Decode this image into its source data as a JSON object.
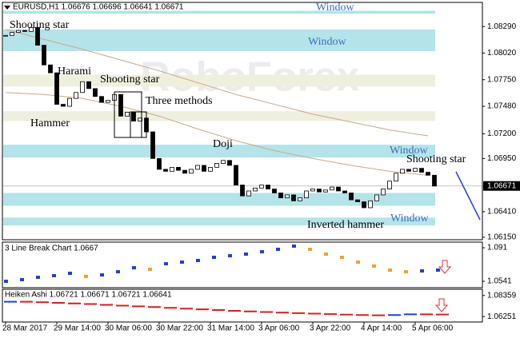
{
  "chart_data": [
    {
      "type": "candlestick",
      "title": "EURUSD,H1 1.06676 1.06696 1.06641 1.06671",
      "watermark": "RoboForex",
      "values": [
        1.082,
        1.0823,
        1.0825,
        1.0824,
        1.0828,
        1.081,
        1.079,
        1.0782,
        1.075,
        1.0748,
        1.0756,
        1.0762,
        1.0773,
        1.0766,
        1.0758,
        1.0752,
        1.0754,
        1.076,
        1.0738,
        1.0742,
        1.0733,
        1.0736,
        1.0722,
        1.0695,
        1.0684,
        1.0682,
        1.0686,
        1.0683,
        1.068,
        1.0684,
        1.0688,
        1.0682,
        1.0686,
        1.069,
        1.0693,
        1.0688,
        1.0668,
        1.0657,
        1.0662,
        1.0665,
        1.0668,
        1.0664,
        1.066,
        1.0655,
        1.0658,
        1.0652,
        1.0655,
        1.0662,
        1.0664,
        1.0661,
        1.0663,
        1.0666,
        1.0662,
        1.066,
        1.0653,
        1.0651,
        1.0645,
        1.0652,
        1.0658,
        1.0664,
        1.0672,
        1.068,
        1.0684,
        1.0682,
        1.0685,
        1.0681,
        1.0678,
        1.0667
      ],
      "bull_color": "#ffffff",
      "bear_color": "#000000",
      "ylim": [
        1.06125,
        1.08535
      ],
      "yticks": [
        {
          "value": 1.0829,
          "label": "1.08290"
        },
        {
          "value": 1.0802,
          "label": "1.08020"
        },
        {
          "value": 1.0775,
          "label": "1.07750"
        },
        {
          "value": 1.0748,
          "label": "1.07480"
        },
        {
          "value": 1.072,
          "label": "1.07200"
        },
        {
          "value": 1.0695,
          "label": "1.06950"
        },
        {
          "value": 1.0641,
          "label": "1.06410"
        },
        {
          "value": 1.0615,
          "label": "1.06150"
        }
      ],
      "xlim": [
        -0.5,
        74.5
      ],
      "xticks": [
        {
          "value": 0,
          "label": "28 Mar 2017"
        },
        {
          "value": 8,
          "label": "29 Mar 14:00"
        },
        {
          "value": 16,
          "label": "30 Mar 06:00"
        },
        {
          "value": 24,
          "label": "30 Mar 22:00"
        },
        {
          "value": 32,
          "label": "31 Mar 14:00"
        },
        {
          "value": 40,
          "label": "3 Apr 06:00"
        },
        {
          "value": 48,
          "label": "3 Apr 22:00"
        },
        {
          "value": 56,
          "label": "4 Apr 14:00"
        },
        {
          "value": 64,
          "label": "5 Apr 06:00"
        }
      ],
      "last": 1.06671,
      "zones": [
        {
          "low": 1.0842,
          "high": 1.0845,
          "color": "#b4e3ea"
        },
        {
          "low": 1.0804,
          "high": 1.0826,
          "color": "#b4e3ea"
        },
        {
          "low": 1.0768,
          "high": 1.078,
          "color": "#eeefdc"
        },
        {
          "low": 1.0733,
          "high": 1.0743,
          "color": "#eeefdc"
        },
        {
          "low": 1.0696,
          "high": 1.0709,
          "color": "#b4e3ea"
        },
        {
          "low": 1.0647,
          "high": 1.066,
          "color": "#b4e3ea"
        },
        {
          "low": 1.0627,
          "high": 1.0635,
          "color": "#b4e3ea"
        }
      ],
      "moving_averages": [
        {
          "color": "#c9a98a",
          "x": [
            0,
            6,
            12,
            18,
            24,
            30,
            36,
            42,
            48,
            54,
            60,
            66
          ],
          "values": [
            1.0826,
            1.0816,
            1.0806,
            1.0795,
            1.0784,
            1.0772,
            1.076,
            1.075,
            1.074,
            1.0732,
            1.0724,
            1.0718
          ]
        },
        {
          "color": "#c9a98a",
          "x": [
            0,
            6,
            12,
            18,
            24,
            30,
            36,
            42,
            48,
            54,
            60,
            66
          ],
          "values": [
            1.0762,
            1.076,
            1.0756,
            1.0748,
            1.0738,
            1.0725,
            1.0713,
            1.0703,
            1.0695,
            1.0688,
            1.0682,
            1.0678
          ]
        }
      ],
      "annotations": [
        {
          "text": "Window",
          "color": "#3a6fc4"
        },
        {
          "text": "Shooting star",
          "color": "#000000"
        },
        {
          "text": "Window",
          "color": "#3a6fc4"
        },
        {
          "text": "Harami",
          "color": "#000000"
        },
        {
          "text": "Shooting star",
          "color": "#000000"
        },
        {
          "text": "Three methods",
          "color": "#000000"
        },
        {
          "text": "Hammer",
          "color": "#000000"
        },
        {
          "text": "Doji",
          "color": "#000000"
        },
        {
          "text": "Window",
          "color": "#3a6fc4"
        },
        {
          "text": "Shooting star",
          "color": "#000000"
        },
        {
          "text": "Inverted hammer",
          "color": "#000000"
        },
        {
          "text": "Window",
          "color": "#3a6fc4"
        }
      ]
    },
    {
      "type": "line-break",
      "title": "3 Line Break Chart 1.0667",
      "up_color": "#1f3fd6",
      "down_color": "#f0a030",
      "values": [
        1.0541,
        1.0559,
        1.0585,
        1.0603,
        1.0629,
        1.0594,
        1.0611,
        1.0646,
        1.069,
        1.0673,
        1.0734,
        1.0752,
        1.077,
        1.0805,
        1.0822,
        1.084,
        1.0866,
        1.0893,
        1.0928,
        1.0893,
        1.084,
        1.0805,
        1.0752,
        1.0708,
        1.0664,
        1.0646,
        1.0655,
        1.0664
      ],
      "ylim": [
        1.0471,
        1.0972
      ],
      "yticks": [
        1.091,
        1.0541
      ]
    },
    {
      "type": "heiken-ashi",
      "title": "Heiken Ashi 1.06721 1.06671 1.06721 1.06641",
      "up_color": "#2040d0",
      "down_color": "#d02020",
      "values": [
        1.0781,
        1.0776,
        1.077,
        1.0764,
        1.0758,
        1.075,
        1.0742,
        1.0735,
        1.0728,
        1.072,
        1.0712,
        1.0705,
        1.0698,
        1.069,
        1.0684,
        1.0678,
        1.0672,
        1.0667,
        1.0662,
        1.0657,
        1.0652,
        1.0648,
        1.0645,
        1.0644,
        1.0648,
        1.0655,
        1.0653,
        1.065
      ],
      "ylim": [
        1.057,
        1.0898
      ],
      "yticks": [
        1.08359,
        1.06251
      ]
    }
  ]
}
